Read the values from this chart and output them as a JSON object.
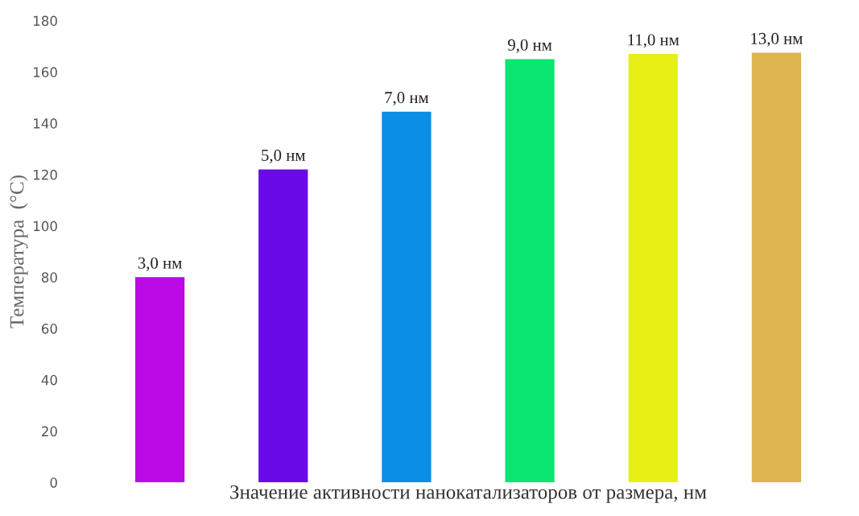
{
  "chart_data": {
    "type": "bar",
    "xlabel": "Значение активности нанокатализаторов от размера, нм",
    "ylabel": "Температура  (°С)",
    "categories": [
      "3,0 нм",
      "5,0 нм",
      "7,0 нм",
      "9,0 нм",
      "11,0 нм",
      "13,0 нм"
    ],
    "values": [
      80,
      122,
      144.5,
      165,
      167,
      167.5
    ],
    "colors": [
      "#bb0ae6",
      "#6a0ae6",
      "#0a8ee6",
      "#0ae672",
      "#e6f014",
      "#dcb450"
    ],
    "ylim": [
      0,
      180
    ],
    "yticks": [
      0,
      20,
      40,
      60,
      80,
      100,
      120,
      140,
      160,
      180
    ],
    "grid": false
  }
}
